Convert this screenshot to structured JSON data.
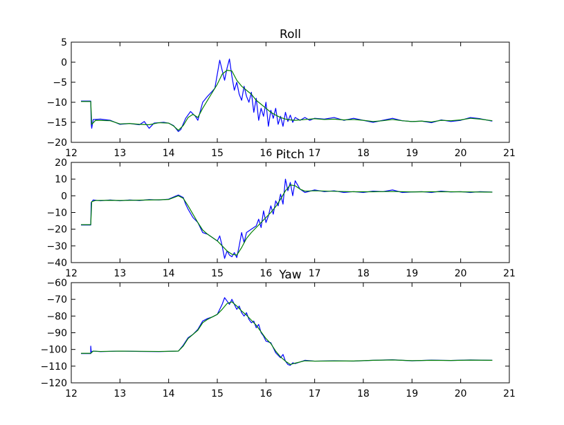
{
  "chart_data": [
    {
      "type": "line",
      "title": "Roll",
      "xlabel": "",
      "ylabel": "",
      "xlim": [
        12,
        21
      ],
      "ylim": [
        -20,
        5
      ],
      "xticks": [
        "12",
        "13",
        "14",
        "15",
        "16",
        "17",
        "18",
        "19",
        "20",
        "21"
      ],
      "yticks": [
        "5",
        "0",
        "−5",
        "−10",
        "−15",
        "−20"
      ],
      "grid": false,
      "series": [
        {
          "color": "#0000ff",
          "x": [
            12.2,
            12.4,
            12.41,
            12.42,
            12.45,
            12.6,
            12.8,
            13.0,
            13.2,
            13.4,
            13.5,
            13.6,
            13.7,
            13.9,
            14.0,
            14.1,
            14.2,
            14.25,
            14.35,
            14.45,
            14.55,
            14.6,
            14.7,
            14.8,
            14.9,
            14.95,
            15.0,
            15.05,
            15.1,
            15.15,
            15.2,
            15.25,
            15.3,
            15.35,
            15.4,
            15.45,
            15.5,
            15.55,
            15.6,
            15.65,
            15.7,
            15.75,
            15.8,
            15.85,
            15.9,
            15.95,
            16.0,
            16.05,
            16.1,
            16.15,
            16.2,
            16.25,
            16.3,
            16.35,
            16.4,
            16.45,
            16.5,
            16.55,
            16.6,
            16.7,
            16.8,
            16.9,
            17.0,
            17.2,
            17.4,
            17.6,
            17.8,
            18.0,
            18.2,
            18.4,
            18.6,
            18.8,
            19.0,
            19.2,
            19.4,
            19.6,
            19.8,
            20.0,
            20.2,
            20.4,
            20.65
          ],
          "y": [
            -9.7,
            -9.7,
            -15.5,
            -16.5,
            -14.3,
            -14.2,
            -14.5,
            -15.5,
            -15.3,
            -15.6,
            -14.8,
            -16.5,
            -15.2,
            -15.0,
            -15.2,
            -15.8,
            -17.3,
            -16.8,
            -14.0,
            -12.3,
            -13.5,
            -14.5,
            -10.0,
            -8.5,
            -7.2,
            -6.5,
            -3.0,
            0.5,
            -2.0,
            -4.5,
            -1.5,
            0.8,
            -3.5,
            -7.0,
            -5.0,
            -8.0,
            -9.5,
            -6.0,
            -8.5,
            -10.0,
            -7.5,
            -12.5,
            -9.0,
            -14.5,
            -11.5,
            -13.5,
            -10.0,
            -16.0,
            -12.0,
            -14.0,
            -11.5,
            -15.5,
            -13.5,
            -16.0,
            -12.5,
            -14.8,
            -13.2,
            -15.0,
            -13.8,
            -14.5,
            -13.8,
            -14.5,
            -14.0,
            -14.2,
            -13.8,
            -14.5,
            -14.0,
            -14.5,
            -15.0,
            -14.5,
            -14.0,
            -14.6,
            -14.8,
            -14.7,
            -15.1,
            -14.4,
            -14.8,
            -14.5,
            -13.8,
            -14.1,
            -14.7
          ]
        },
        {
          "color": "#008000",
          "x": [
            12.2,
            12.4,
            12.42,
            12.5,
            12.8,
            13.0,
            13.2,
            13.4,
            13.6,
            13.8,
            14.0,
            14.1,
            14.2,
            14.3,
            14.4,
            14.5,
            14.6,
            14.7,
            14.8,
            14.9,
            15.0,
            15.1,
            15.2,
            15.3,
            15.4,
            15.5,
            15.6,
            15.7,
            15.8,
            15.9,
            16.0,
            16.1,
            16.2,
            16.3,
            16.4,
            16.5,
            16.6,
            16.8,
            17.0,
            17.2,
            17.4,
            17.6,
            17.8,
            18.0,
            18.2,
            18.4,
            18.6,
            18.8,
            19.0,
            19.2,
            19.4,
            19.6,
            19.8,
            20.0,
            20.2,
            20.4,
            20.65
          ],
          "y": [
            -9.8,
            -9.8,
            -15.5,
            -14.5,
            -14.6,
            -15.4,
            -15.3,
            -15.5,
            -15.6,
            -15.1,
            -15.2,
            -15.9,
            -17.0,
            -15.8,
            -13.8,
            -13.0,
            -13.8,
            -11.5,
            -9.5,
            -7.5,
            -5.5,
            -3.0,
            -2.0,
            -2.2,
            -4.5,
            -6.0,
            -7.0,
            -8.0,
            -9.5,
            -10.5,
            -11.5,
            -12.5,
            -13.2,
            -13.8,
            -14.2,
            -14.4,
            -14.5,
            -14.3,
            -14.1,
            -14.3,
            -14.2,
            -14.4,
            -14.3,
            -14.5,
            -14.8,
            -14.6,
            -14.3,
            -14.6,
            -14.8,
            -14.7,
            -14.9,
            -14.5,
            -14.6,
            -14.4,
            -14.0,
            -14.2,
            -14.6
          ]
        }
      ]
    },
    {
      "type": "line",
      "title": "Pitch",
      "xlabel": "",
      "ylabel": "",
      "xlim": [
        12,
        21
      ],
      "ylim": [
        -40,
        20
      ],
      "xticks": [
        "12",
        "13",
        "14",
        "15",
        "16",
        "17",
        "18",
        "19",
        "20",
        "21"
      ],
      "yticks": [
        "20",
        "10",
        "0",
        "−10",
        "−20",
        "−30",
        "−40"
      ],
      "grid": false,
      "series": [
        {
          "color": "#0000ff",
          "x": [
            12.2,
            12.4,
            12.41,
            12.45,
            12.6,
            12.8,
            13.0,
            13.2,
            13.4,
            13.6,
            13.8,
            14.0,
            14.2,
            14.3,
            14.35,
            14.4,
            14.5,
            14.6,
            14.7,
            14.8,
            14.9,
            15.0,
            15.05,
            15.1,
            15.15,
            15.2,
            15.25,
            15.3,
            15.35,
            15.4,
            15.45,
            15.5,
            15.55,
            15.6,
            15.7,
            15.8,
            15.85,
            15.9,
            15.95,
            16.0,
            16.05,
            16.1,
            16.15,
            16.2,
            16.25,
            16.3,
            16.35,
            16.4,
            16.45,
            16.5,
            16.55,
            16.6,
            16.7,
            16.8,
            17.0,
            17.2,
            17.4,
            17.6,
            17.8,
            18.0,
            18.2,
            18.4,
            18.6,
            18.8,
            19.0,
            19.2,
            19.4,
            19.6,
            19.8,
            20.0,
            20.2,
            20.4,
            20.65
          ],
          "y": [
            -17.5,
            -17.5,
            -4.0,
            -2.5,
            -3.0,
            -2.5,
            -3.0,
            -2.5,
            -2.8,
            -2.3,
            -2.5,
            -2.0,
            0.5,
            -1.0,
            -5.0,
            -8.0,
            -13.0,
            -16.0,
            -22.0,
            -23.0,
            -25.0,
            -27.0,
            -24.0,
            -30.0,
            -37.5,
            -33.0,
            -35.5,
            -36.5,
            -34.0,
            -37.0,
            -30.0,
            -22.0,
            -28.0,
            -22.0,
            -20.0,
            -18.0,
            -14.0,
            -19.0,
            -9.0,
            -16.0,
            -12.0,
            -6.0,
            -11.0,
            -3.0,
            -6.0,
            1.0,
            -5.0,
            10.0,
            3.0,
            8.0,
            0.0,
            9.0,
            4.0,
            2.0,
            3.5,
            2.5,
            3.0,
            2.0,
            2.5,
            2.0,
            2.8,
            2.5,
            3.5,
            2.0,
            2.3,
            2.5,
            2.0,
            2.8,
            2.3,
            2.5,
            2.0,
            2.5,
            2.2
          ]
        },
        {
          "color": "#008000",
          "x": [
            12.2,
            12.4,
            12.42,
            12.5,
            12.8,
            13.0,
            13.4,
            13.8,
            14.0,
            14.2,
            14.3,
            14.4,
            14.5,
            14.6,
            14.7,
            14.8,
            14.9,
            15.0,
            15.1,
            15.2,
            15.3,
            15.4,
            15.5,
            15.6,
            15.7,
            15.8,
            15.9,
            16.0,
            16.1,
            16.2,
            16.3,
            16.4,
            16.5,
            16.6,
            16.7,
            16.8,
            17.0,
            17.4,
            17.8,
            18.2,
            18.6,
            19.0,
            19.4,
            19.8,
            20.2,
            20.65
          ],
          "y": [
            -17.3,
            -17.3,
            -3.5,
            -2.8,
            -2.7,
            -2.8,
            -2.6,
            -2.4,
            -2.2,
            0.0,
            -1.5,
            -6.0,
            -11.0,
            -16.0,
            -20.5,
            -23.0,
            -25.0,
            -27.0,
            -30.0,
            -33.0,
            -35.0,
            -35.5,
            -31.0,
            -25.5,
            -22.0,
            -19.0,
            -16.0,
            -13.0,
            -10.0,
            -6.5,
            -2.0,
            3.0,
            6.5,
            6.0,
            4.0,
            2.8,
            3.0,
            2.7,
            2.4,
            2.4,
            2.6,
            2.3,
            2.4,
            2.4,
            2.3,
            2.2
          ]
        }
      ]
    },
    {
      "type": "line",
      "title": "Yaw",
      "xlabel": "",
      "ylabel": "",
      "xlim": [
        12,
        21
      ],
      "ylim": [
        -120,
        -60
      ],
      "xticks": [
        "12",
        "13",
        "14",
        "15",
        "16",
        "17",
        "18",
        "19",
        "20",
        "21"
      ],
      "yticks": [
        "−60",
        "−70",
        "−80",
        "−90",
        "−100",
        "−110",
        "−120"
      ],
      "grid": false,
      "series": [
        {
          "color": "#0000ff",
          "x": [
            12.2,
            12.4,
            12.4,
            12.41,
            12.45,
            12.6,
            13.0,
            13.4,
            13.8,
            14.2,
            14.3,
            14.4,
            14.5,
            14.6,
            14.7,
            14.8,
            14.9,
            15.0,
            15.05,
            15.1,
            15.15,
            15.2,
            15.25,
            15.3,
            15.35,
            15.4,
            15.45,
            15.5,
            15.55,
            15.6,
            15.65,
            15.7,
            15.75,
            15.8,
            15.85,
            15.9,
            15.95,
            16.0,
            16.1,
            16.2,
            16.3,
            16.35,
            16.4,
            16.45,
            16.5,
            16.55,
            16.6,
            16.8,
            17.0,
            17.4,
            17.8,
            18.2,
            18.6,
            19.0,
            19.4,
            19.8,
            20.2,
            20.65
          ],
          "y": [
            -102.5,
            -102.5,
            -98.0,
            -101.5,
            -101.0,
            -101.3,
            -101.0,
            -101.2,
            -101.3,
            -101.0,
            -97.5,
            -93.0,
            -91.0,
            -88.0,
            -83.0,
            -81.5,
            -80.5,
            -79.0,
            -76.0,
            -73.0,
            -69.0,
            -71.0,
            -73.0,
            -70.0,
            -73.0,
            -76.0,
            -74.0,
            -78.0,
            -80.0,
            -78.0,
            -82.0,
            -84.0,
            -83.0,
            -87.0,
            -85.0,
            -90.0,
            -92.0,
            -95.0,
            -96.0,
            -102.0,
            -105.0,
            -103.0,
            -107.0,
            -109.0,
            -109.5,
            -108.0,
            -108.5,
            -106.5,
            -107.0,
            -106.8,
            -107.0,
            -106.5,
            -106.2,
            -106.8,
            -106.4,
            -106.6,
            -106.3,
            -106.5
          ]
        },
        {
          "color": "#008000",
          "x": [
            12.2,
            12.4,
            12.45,
            12.6,
            13.0,
            13.4,
            13.8,
            14.2,
            14.3,
            14.4,
            14.5,
            14.6,
            14.7,
            14.8,
            14.9,
            15.0,
            15.1,
            15.2,
            15.3,
            15.4,
            15.5,
            15.6,
            15.7,
            15.8,
            15.9,
            16.0,
            16.1,
            16.2,
            16.3,
            16.4,
            16.5,
            16.6,
            16.8,
            17.0,
            17.4,
            17.8,
            18.2,
            18.6,
            19.0,
            19.4,
            19.8,
            20.2,
            20.65
          ],
          "y": [
            -102.3,
            -102.3,
            -101.0,
            -101.2,
            -101.0,
            -101.1,
            -101.2,
            -101.0,
            -98.0,
            -93.5,
            -91.0,
            -88.5,
            -84.0,
            -82.0,
            -80.5,
            -79.0,
            -76.0,
            -72.5,
            -71.5,
            -74.0,
            -77.0,
            -79.5,
            -82.5,
            -85.5,
            -89.5,
            -93.5,
            -96.5,
            -101.0,
            -104.5,
            -107.0,
            -109.0,
            -108.2,
            -106.8,
            -107.0,
            -106.9,
            -106.9,
            -106.5,
            -106.3,
            -106.7,
            -106.5,
            -106.6,
            -106.4,
            -106.5
          ]
        }
      ]
    }
  ]
}
